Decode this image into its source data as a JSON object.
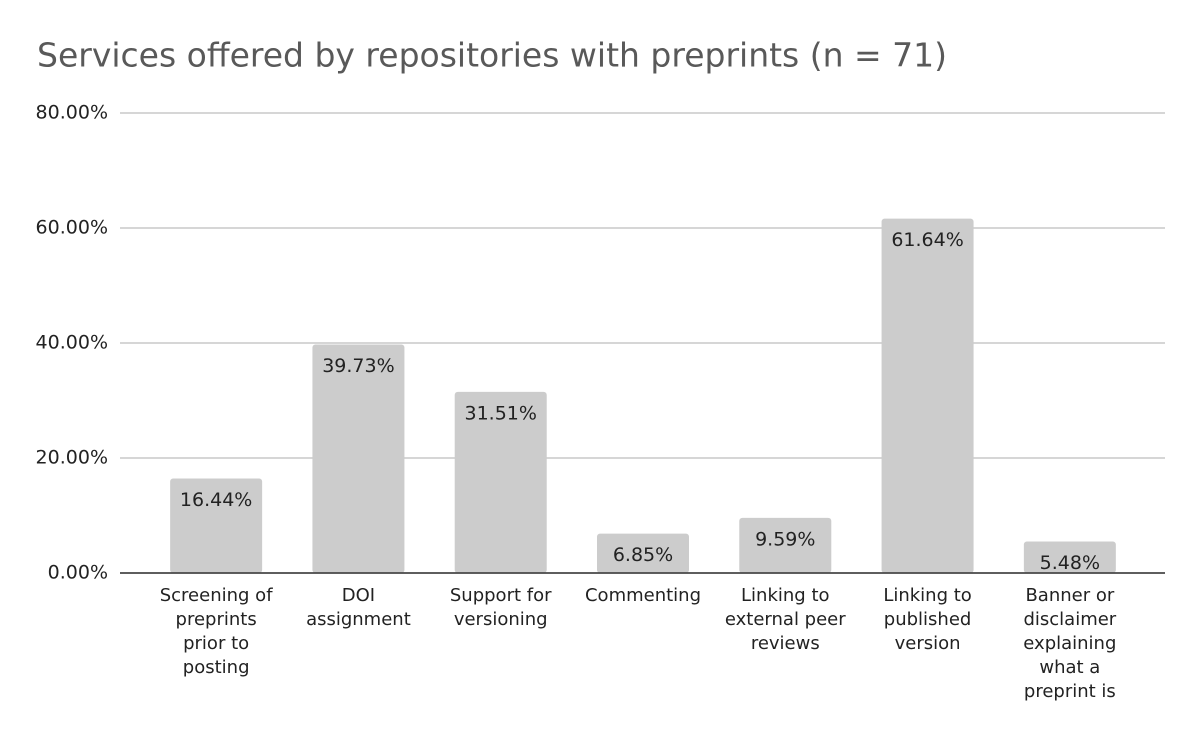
{
  "chart_data": {
    "type": "bar",
    "title": "Services offered by repositories with preprints (n = 71)",
    "categories": [
      "Screening of preprints prior to posting",
      "DOI assignment",
      "Support for versioning",
      "Commenting",
      "Linking to external peer reviews",
      "Linking to published version",
      "Banner or disclaimer explaining what a preprint is"
    ],
    "values": [
      16.44,
      39.73,
      31.51,
      6.85,
      9.59,
      61.64,
      5.48
    ],
    "value_labels": [
      "16.44%",
      "39.73%",
      "31.51%",
      "6.85%",
      "9.59%",
      "61.64%",
      "5.48%"
    ],
    "color": "#cccccc",
    "ylim": [
      0,
      80
    ],
    "yticks": [
      {
        "value": 0,
        "label": "0.00%"
      },
      {
        "value": 20,
        "label": "20.00%"
      },
      {
        "value": 40,
        "label": "40.00%"
      },
      {
        "value": 60,
        "label": "60.00%"
      },
      {
        "value": 80,
        "label": "80.00%"
      }
    ],
    "grid": true
  }
}
